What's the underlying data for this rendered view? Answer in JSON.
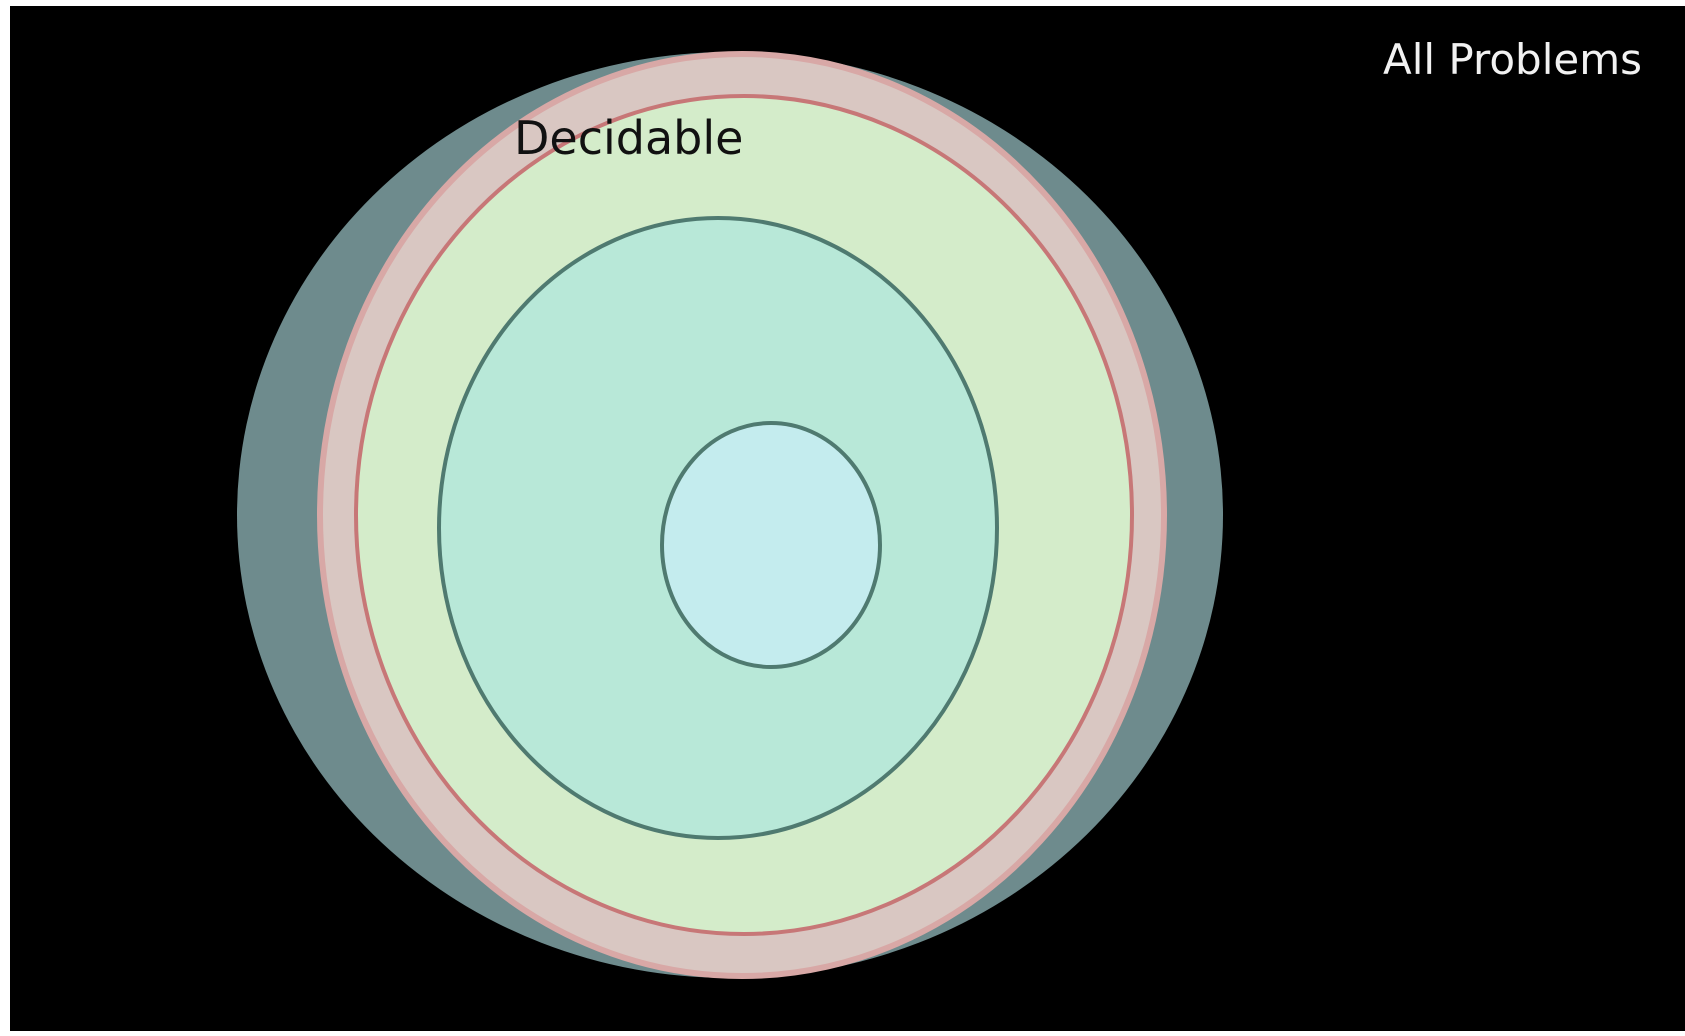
{
  "labels": {
    "universe": "All Problems",
    "decidable": "Decidable"
  },
  "colors": {
    "background": "#000000",
    "frame": "#c8c8c8",
    "outer_region": "#6e8b8d",
    "pink_band": "#d9c7c2",
    "pink_line": "#c77777",
    "decidable_fill": "#d4ecca",
    "middle_fill": "#b8e8d8",
    "inner_fill": "#c4ecee",
    "ring_stroke": "#4f7a70",
    "universe_text": "#f2f2f2",
    "decidable_text": "#111111"
  }
}
